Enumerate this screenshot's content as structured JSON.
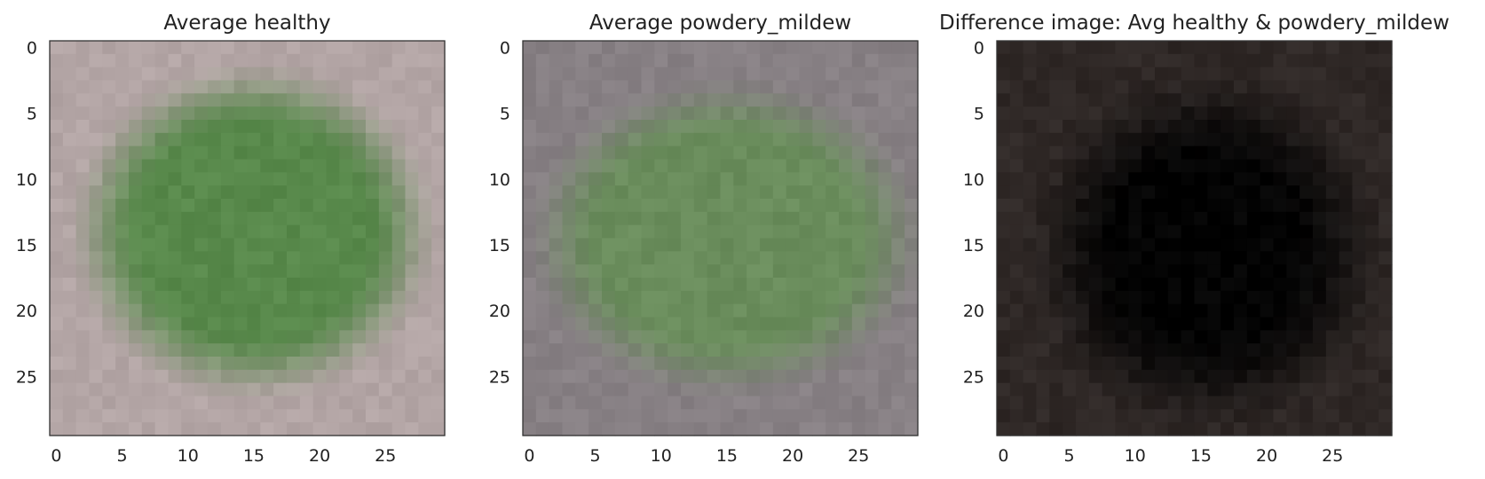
{
  "chart_data": [
    {
      "type": "heatmap",
      "title": "Average healthy",
      "xlabel": "",
      "ylabel": "",
      "grid_size": 30,
      "xlim": [
        -0.5,
        29.5
      ],
      "ylim": [
        29.5,
        -0.5
      ],
      "x_ticks": [
        0,
        5,
        10,
        15,
        20,
        25
      ],
      "y_ticks": [
        0,
        5,
        10,
        15,
        20,
        25
      ],
      "grid": false,
      "colors": {
        "background": "#b3a5a5",
        "foreground": "#58894b"
      },
      "blob": {
        "cx": 15.0,
        "cy": 14.0,
        "rx": 11.5,
        "ry": 10.5,
        "edge": 3.0
      }
    },
    {
      "type": "heatmap",
      "title": "Average powdery_mildew",
      "xlabel": "",
      "ylabel": "",
      "grid_size": 30,
      "xlim": [
        -0.5,
        29.5
      ],
      "ylim": [
        29.5,
        -0.5
      ],
      "x_ticks": [
        0,
        5,
        10,
        15,
        20,
        25
      ],
      "y_ticks": [
        0,
        5,
        10,
        15,
        20,
        25
      ],
      "grid": false,
      "colors": {
        "background": "#878084",
        "foreground": "#6a8d5c"
      },
      "blob": {
        "cx": 15.0,
        "cy": 14.5,
        "rx": 12.5,
        "ry": 10.0,
        "edge": 3.0
      }
    },
    {
      "type": "heatmap",
      "title": "Difference image: Avg healthy & powdery_mildew",
      "xlabel": "",
      "ylabel": "",
      "grid_size": 30,
      "xlim": [
        -0.5,
        29.5
      ],
      "ylim": [
        29.5,
        -0.5
      ],
      "x_ticks": [
        0,
        5,
        10,
        15,
        20,
        25
      ],
      "y_ticks": [
        0,
        5,
        10,
        15,
        20,
        25
      ],
      "grid": false,
      "colors": {
        "background": "#2f2826",
        "foreground": "#030303"
      },
      "blob": {
        "cx": 15.5,
        "cy": 15.5,
        "rx": 10.5,
        "ry": 10.5,
        "edge": 4.0
      }
    }
  ]
}
